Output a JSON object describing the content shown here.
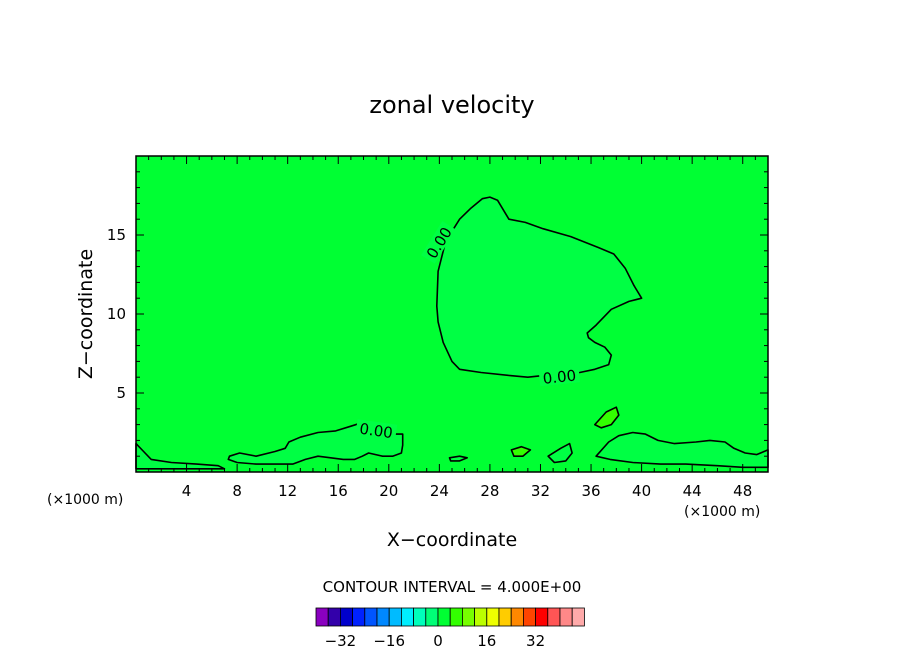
{
  "chart_data": {
    "type": "heatmap",
    "title": "zonal velocity",
    "xlabel": "X−coordinate",
    "ylabel": "Z−coordinate",
    "x_unit_label": "(×1000 m)",
    "x_unit_label_right": "(×1000 m)",
    "xlim": [
      0,
      50
    ],
    "ylim": [
      0,
      20
    ],
    "x_ticks": [
      {
        "value": 4,
        "label": "4"
      },
      {
        "value": 8,
        "label": "8"
      },
      {
        "value": 12,
        "label": "12"
      },
      {
        "value": 16,
        "label": "16"
      },
      {
        "value": 20,
        "label": "20"
      },
      {
        "value": 24,
        "label": "24"
      },
      {
        "value": 28,
        "label": "28"
      },
      {
        "value": 32,
        "label": "32"
      },
      {
        "value": 36,
        "label": "36"
      },
      {
        "value": 40,
        "label": "40"
      },
      {
        "value": 44,
        "label": "44"
      },
      {
        "value": 48,
        "label": "48"
      }
    ],
    "y_ticks": [
      {
        "value": 5,
        "label": "5"
      },
      {
        "value": 10,
        "label": "10"
      },
      {
        "value": 15,
        "label": "15"
      }
    ],
    "background_fill": "#00ff33",
    "contour_interval_text": "CONTOUR INTERVAL = 4.000E+00",
    "contours": [
      {
        "level_label": "0.00",
        "fill": "#00ff44",
        "label_points": [
          [
            24,
            14.5
          ],
          [
            33.5,
            6.0
          ]
        ],
        "points": [
          [
            23.8,
            10.5
          ],
          [
            23.9,
            12.7
          ],
          [
            24.5,
            14.6
          ],
          [
            25.6,
            16.0
          ],
          [
            26.5,
            16.7
          ],
          [
            27.4,
            17.3
          ],
          [
            28.0,
            17.4
          ],
          [
            28.6,
            17.2
          ],
          [
            29.5,
            16.0
          ],
          [
            30.8,
            15.8
          ],
          [
            32.2,
            15.4
          ],
          [
            34.4,
            14.9
          ],
          [
            36.6,
            14.2
          ],
          [
            37.8,
            13.8
          ],
          [
            38.7,
            12.9
          ],
          [
            39.4,
            11.8
          ],
          [
            40.0,
            11.0
          ],
          [
            39.0,
            10.8
          ],
          [
            37.6,
            10.3
          ],
          [
            36.4,
            9.3
          ],
          [
            35.7,
            8.8
          ],
          [
            35.8,
            8.5
          ],
          [
            36.3,
            8.2
          ],
          [
            37.1,
            7.9
          ],
          [
            37.6,
            7.4
          ],
          [
            37.4,
            6.8
          ],
          [
            36.3,
            6.5
          ],
          [
            35.1,
            6.3
          ],
          [
            33.9,
            6.2
          ],
          [
            32.2,
            6.1
          ],
          [
            31.0,
            6.0
          ],
          [
            29.6,
            6.1
          ],
          [
            27.3,
            6.3
          ],
          [
            25.6,
            6.5
          ],
          [
            25.0,
            7.0
          ],
          [
            24.3,
            8.2
          ],
          [
            23.9,
            9.5
          ]
        ]
      },
      {
        "level_label": "0.00",
        "fill": "#00ff44",
        "label_points": [
          [
            19,
            2.6
          ]
        ],
        "points": [
          [
            7.4,
            1.0
          ],
          [
            8.2,
            1.2
          ],
          [
            9.5,
            1.0
          ],
          [
            11.0,
            1.3
          ],
          [
            11.8,
            1.5
          ],
          [
            12.1,
            1.9
          ],
          [
            13.0,
            2.2
          ],
          [
            14.4,
            2.5
          ],
          [
            15.8,
            2.6
          ],
          [
            17.0,
            2.9
          ],
          [
            18.2,
            3.2
          ],
          [
            19.5,
            2.8
          ],
          [
            20.3,
            2.4
          ],
          [
            21.1,
            2.4
          ],
          [
            21.1,
            1.7
          ],
          [
            21.0,
            1.2
          ],
          [
            20.3,
            1.0
          ],
          [
            19.5,
            1.0
          ],
          [
            18.4,
            1.2
          ],
          [
            17.9,
            1.0
          ],
          [
            17.3,
            0.8
          ],
          [
            16.4,
            0.8
          ],
          [
            15.4,
            0.9
          ],
          [
            14.4,
            1.0
          ],
          [
            13.4,
            0.8
          ],
          [
            12.4,
            0.5
          ],
          [
            11.0,
            0.5
          ],
          [
            9.5,
            0.5
          ],
          [
            8.0,
            0.6
          ],
          [
            7.3,
            0.8
          ]
        ]
      },
      {
        "level_label": "",
        "fill": "#00ff44",
        "label_points": [],
        "points": [
          [
            36.4,
            1.0
          ],
          [
            37.4,
            1.9
          ],
          [
            38.2,
            2.3
          ],
          [
            39.3,
            2.5
          ],
          [
            40.3,
            2.4
          ],
          [
            41.3,
            2.0
          ],
          [
            42.6,
            1.8
          ],
          [
            44.3,
            1.9
          ],
          [
            45.4,
            2.0
          ],
          [
            46.6,
            1.9
          ],
          [
            47.3,
            1.5
          ],
          [
            48.2,
            1.2
          ],
          [
            49.1,
            1.1
          ],
          [
            50.0,
            1.4
          ],
          [
            50.0,
            0.3
          ],
          [
            48.0,
            0.3
          ],
          [
            46.0,
            0.4
          ],
          [
            43.5,
            0.5
          ],
          [
            41.5,
            0.5
          ],
          [
            39.3,
            0.6
          ],
          [
            37.5,
            0.8
          ]
        ]
      },
      {
        "level_label": "",
        "fill": "#00ff44",
        "label_points": [],
        "points": [
          [
            0.0,
            1.8
          ],
          [
            0.6,
            1.3
          ],
          [
            1.2,
            0.8
          ],
          [
            2.8,
            0.6
          ],
          [
            4.8,
            0.5
          ],
          [
            6.5,
            0.4
          ],
          [
            7.0,
            0.2
          ],
          [
            0.0,
            0.2
          ]
        ]
      },
      {
        "level_label": "",
        "fill": "#00ff44",
        "label_points": [],
        "points": [
          [
            32.6,
            1.0
          ],
          [
            33.6,
            1.5
          ],
          [
            34.3,
            1.8
          ],
          [
            34.5,
            1.2
          ],
          [
            34.0,
            0.7
          ],
          [
            33.1,
            0.6
          ]
        ]
      },
      {
        "level_label": "",
        "fill": "#00ff44",
        "label_points": [],
        "points": [
          [
            24.8,
            0.9
          ],
          [
            25.6,
            1.0
          ],
          [
            26.2,
            0.9
          ],
          [
            25.6,
            0.7
          ],
          [
            24.9,
            0.7
          ]
        ]
      },
      {
        "level_label": "",
        "fill": "#33ff00",
        "label_points": [],
        "points": [
          [
            29.7,
            1.4
          ],
          [
            30.5,
            1.6
          ],
          [
            31.2,
            1.4
          ],
          [
            30.6,
            1.0
          ],
          [
            29.9,
            1.0
          ]
        ]
      },
      {
        "level_label": "",
        "fill": "#33ff00",
        "label_points": [],
        "points": [
          [
            36.3,
            3.0
          ],
          [
            37.2,
            3.8
          ],
          [
            38.0,
            4.1
          ],
          [
            38.2,
            3.6
          ],
          [
            37.6,
            3.0
          ],
          [
            36.8,
            2.8
          ]
        ]
      }
    ],
    "colorbar": {
      "tick_labels": [
        {
          "value": -32,
          "label": "−32"
        },
        {
          "value": -16,
          "label": "−16"
        },
        {
          "value": 0,
          "label": "0"
        },
        {
          "value": 16,
          "label": "16"
        },
        {
          "value": 32,
          "label": "32"
        }
      ],
      "bins": [
        {
          "lo": -40,
          "hi": -36,
          "color": "#8a00c0"
        },
        {
          "lo": -36,
          "hi": -32,
          "color": "#3300aa"
        },
        {
          "lo": -32,
          "hi": -28,
          "color": "#0000cc"
        },
        {
          "lo": -28,
          "hi": -24,
          "color": "#0022ff"
        },
        {
          "lo": -24,
          "hi": -20,
          "color": "#0055ff"
        },
        {
          "lo": -20,
          "hi": -16,
          "color": "#0088ff"
        },
        {
          "lo": -16,
          "hi": -12,
          "color": "#00bbff"
        },
        {
          "lo": -12,
          "hi": -8,
          "color": "#00eeff"
        },
        {
          "lo": -8,
          "hi": -4,
          "color": "#00ffbb"
        },
        {
          "lo": -4,
          "hi": 0,
          "color": "#00ff77"
        },
        {
          "lo": 0,
          "hi": 4,
          "color": "#00ff33"
        },
        {
          "lo": 4,
          "hi": 8,
          "color": "#33ff00"
        },
        {
          "lo": 8,
          "hi": 12,
          "color": "#77ff00"
        },
        {
          "lo": 12,
          "hi": 16,
          "color": "#bbff00"
        },
        {
          "lo": 16,
          "hi": 20,
          "color": "#eeff00"
        },
        {
          "lo": 20,
          "hi": 24,
          "color": "#ffcc00"
        },
        {
          "lo": 24,
          "hi": 28,
          "color": "#ff8800"
        },
        {
          "lo": 28,
          "hi": 32,
          "color": "#ff4400"
        },
        {
          "lo": 32,
          "hi": 36,
          "color": "#ff0000"
        },
        {
          "lo": 36,
          "hi": 40,
          "color": "#ff5555"
        },
        {
          "lo": 40,
          "hi": 44,
          "color": "#ff8888"
        },
        {
          "lo": 44,
          "hi": 48,
          "color": "#ffaaaa"
        }
      ]
    }
  }
}
